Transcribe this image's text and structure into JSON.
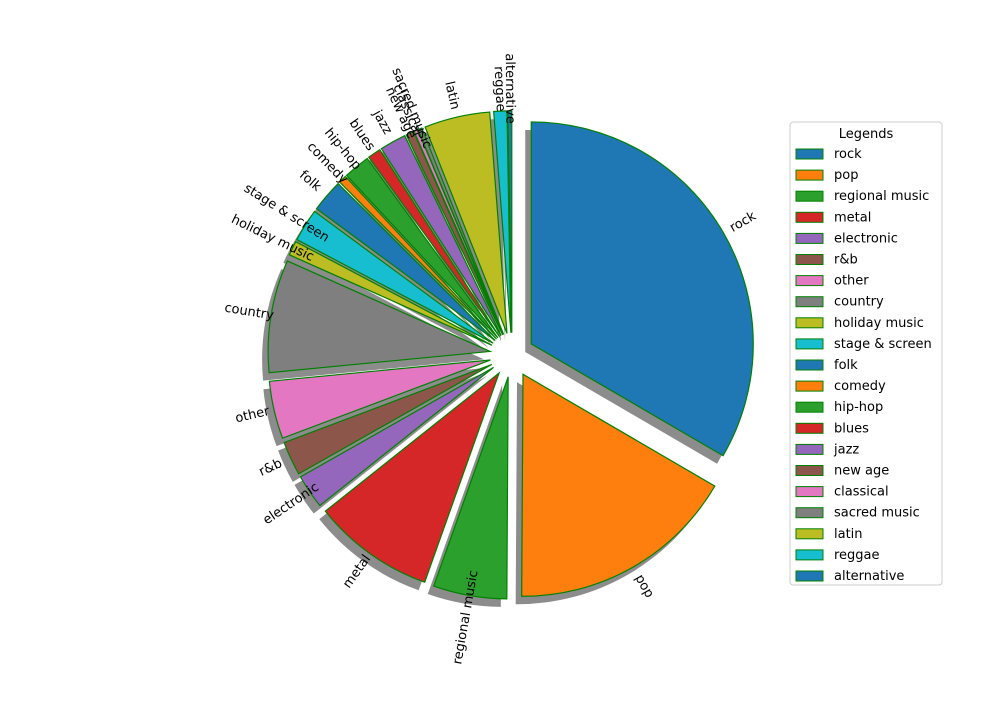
{
  "chart_data": {
    "type": "pie",
    "title": "",
    "legend": {
      "title": "Legends",
      "placement": "center-right"
    },
    "start_angle_deg": 90,
    "direction": "clockwise",
    "slice_edge_color": "#008000",
    "shadow": true,
    "label_rotation": "radial",
    "slices": [
      {
        "label": "rock",
        "value": 35.0,
        "color": "#1f77b4"
      },
      {
        "label": "pop",
        "value": 17.5,
        "color": "#ff7f0e"
      },
      {
        "label": "regional music",
        "value": 5.6,
        "color": "#2ca02c"
      },
      {
        "label": "metal",
        "value": 9.3,
        "color": "#d62728"
      },
      {
        "label": "electronic",
        "value": 2.6,
        "color": "#9467bd"
      },
      {
        "label": "r&b",
        "value": 2.6,
        "color": "#8c564b"
      },
      {
        "label": "other",
        "value": 4.4,
        "color": "#e377c2"
      },
      {
        "label": "country",
        "value": 8.6,
        "color": "#7f7f7f"
      },
      {
        "label": "holiday music",
        "value": 1.1,
        "color": "#bcbd22"
      },
      {
        "label": "stage & screen",
        "value": 2.5,
        "color": "#17becf"
      },
      {
        "label": "folk",
        "value": 2.5,
        "color": "#1f77b4"
      },
      {
        "label": "comedy",
        "value": 0.6,
        "color": "#ff7f0e"
      },
      {
        "label": "hip-hop",
        "value": 2.0,
        "color": "#2ca02c"
      },
      {
        "label": "blues",
        "value": 1.0,
        "color": "#d62728"
      },
      {
        "label": "jazz",
        "value": 2.0,
        "color": "#9467bd"
      },
      {
        "label": "new age",
        "value": 0.6,
        "color": "#8c564b"
      },
      {
        "label": "classical",
        "value": 0.3,
        "color": "#e377c2"
      },
      {
        "label": "sacred music",
        "value": 0.3,
        "color": "#7f7f7f"
      },
      {
        "label": "latin",
        "value": 5.0,
        "color": "#bcbd22"
      },
      {
        "label": "reggae",
        "value": 1.0,
        "color": "#17becf"
      },
      {
        "label": "alternative",
        "value": 0.3,
        "color": "#1f77b4"
      }
    ]
  }
}
